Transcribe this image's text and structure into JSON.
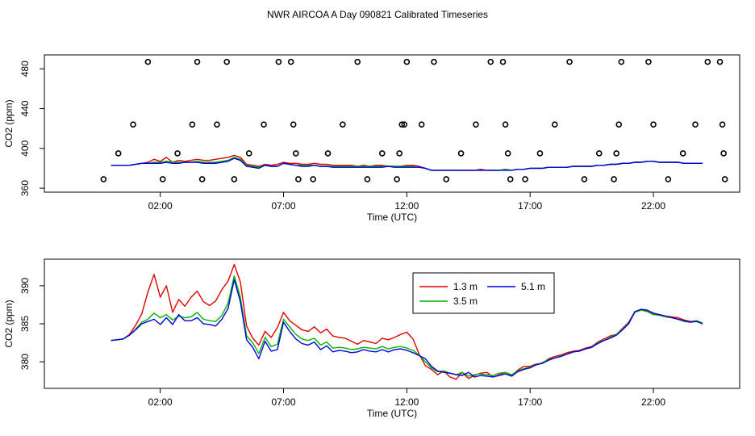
{
  "figure_title": "NWR AIRCOA A  Day 090821  Calibrated Timeseries",
  "colors": {
    "series_1_3m": "#e00000",
    "series_3_5m": "#00b400",
    "series_5_1m": "#0000e0",
    "axis": "#000000"
  },
  "chart_data": [
    {
      "type": "line",
      "title": "",
      "xlabel": "Time (UTC)",
      "ylabel": "CO2 (ppm)",
      "x_unit": "hours UTC",
      "xlim": [
        -2.7,
        25.5
      ],
      "ylim": [
        356,
        494
      ],
      "xticks": [
        2,
        7,
        12,
        17,
        22
      ],
      "xtick_labels": [
        "02:00",
        "07:00",
        "12:00",
        "17:00",
        "22:00"
      ],
      "yticks": [
        360,
        400,
        440,
        480
      ],
      "ytick_labels": [
        "360",
        "400",
        "440",
        "480"
      ],
      "line_x": [
        0,
        0.25,
        0.5,
        0.75,
        1,
        1.25,
        1.5,
        1.75,
        2,
        2.25,
        2.5,
        2.75,
        3,
        3.25,
        3.5,
        3.75,
        4,
        4.25,
        4.5,
        4.75,
        5,
        5.25,
        5.5,
        5.75,
        6,
        6.25,
        6.5,
        6.75,
        7,
        7.25,
        7.5,
        7.75,
        8,
        8.25,
        8.5,
        8.75,
        9,
        9.25,
        9.5,
        9.75,
        10,
        10.25,
        10.5,
        10.75,
        11,
        11.25,
        11.5,
        11.75,
        12,
        12.25,
        12.5,
        12.75,
        13,
        13.25,
        13.5,
        13.75,
        14,
        14.25,
        14.5,
        14.75,
        15,
        15.25,
        15.5,
        15.75,
        16,
        16.25,
        16.5,
        16.75,
        17,
        17.25,
        17.5,
        17.75,
        18,
        18.25,
        18.5,
        18.75,
        19,
        19.25,
        19.5,
        19.75,
        20,
        20.25,
        20.5,
        20.75,
        21,
        21.25,
        21.5,
        21.75,
        22,
        22.25,
        22.5,
        22.75,
        23,
        23.25,
        23.5,
        23.75,
        24
      ],
      "series": [
        {
          "name": "1.3 m",
          "values": [
            383,
            383,
            383,
            383,
            384,
            385,
            386,
            389,
            387,
            391,
            386,
            388,
            387,
            388,
            389,
            388,
            388,
            389,
            390,
            391,
            393,
            391,
            384,
            383,
            382,
            384,
            383,
            384,
            386,
            385,
            385,
            384,
            384,
            385,
            384,
            384,
            383,
            383,
            383,
            383,
            382,
            383,
            382,
            383,
            383,
            382,
            382,
            382,
            383,
            383,
            382,
            380,
            378,
            378,
            378,
            378,
            378,
            378,
            378,
            378,
            379,
            378,
            378,
            378,
            379,
            378,
            379,
            379,
            380,
            380,
            380,
            381,
            381,
            381,
            381,
            382,
            382,
            382,
            382,
            383,
            383,
            384,
            384,
            385,
            385,
            386,
            386,
            387,
            387,
            386,
            386,
            386,
            386,
            385,
            385,
            385,
            385,
            384,
            384
          ]
        },
        {
          "name": "3.5 m",
          "values": [
            383,
            383,
            383,
            383,
            384,
            385,
            385,
            386,
            386,
            387,
            386,
            386,
            386,
            386,
            387,
            386,
            386,
            386,
            387,
            388,
            391,
            389,
            383,
            382,
            381,
            383,
            382,
            382,
            385,
            384,
            383,
            383,
            383,
            383,
            382,
            382,
            382,
            382,
            382,
            382,
            382,
            382,
            382,
            382,
            382,
            382,
            382,
            382,
            382,
            382,
            381,
            380,
            378,
            378,
            378,
            378,
            378,
            378,
            378,
            378,
            378,
            378,
            378,
            378,
            379,
            378,
            379,
            379,
            380,
            380,
            380,
            381,
            381,
            381,
            381,
            382,
            382,
            382,
            382,
            383,
            383,
            384,
            384,
            385,
            385,
            386,
            386,
            387,
            387,
            386,
            386,
            386,
            386,
            385,
            385,
            385,
            385,
            385,
            385
          ]
        },
        {
          "name": "5.1 m",
          "values": [
            383,
            383,
            383,
            383,
            384,
            385,
            385,
            385,
            385,
            386,
            385,
            385,
            386,
            386,
            386,
            385,
            385,
            385,
            386,
            387,
            390,
            388,
            382,
            381,
            380,
            383,
            382,
            382,
            385,
            384,
            383,
            382,
            382,
            383,
            382,
            382,
            381,
            381,
            381,
            381,
            381,
            381,
            381,
            381,
            381,
            382,
            381,
            381,
            381,
            381,
            381,
            380,
            378,
            378,
            378,
            378,
            378,
            378,
            378,
            378,
            378,
            378,
            378,
            378,
            378,
            378,
            379,
            379,
            380,
            380,
            380,
            381,
            381,
            381,
            381,
            382,
            382,
            382,
            382,
            383,
            383,
            384,
            384,
            385,
            385,
            386,
            386,
            387,
            387,
            386,
            386,
            386,
            386,
            385,
            385,
            385,
            385,
            385,
            385
          ]
        }
      ],
      "calibration_points": [
        {
          "x": -0.3,
          "y": 369
        },
        {
          "x": 0.3,
          "y": 395
        },
        {
          "x": 0.9,
          "y": 424
        },
        {
          "x": 1.5,
          "y": 487
        },
        {
          "x": 2.1,
          "y": 369
        },
        {
          "x": 2.7,
          "y": 395
        },
        {
          "x": 3.3,
          "y": 424
        },
        {
          "x": 3.5,
          "y": 487
        },
        {
          "x": 3.7,
          "y": 369
        },
        {
          "x": 4.3,
          "y": 424
        },
        {
          "x": 4.7,
          "y": 487
        },
        {
          "x": 5.0,
          "y": 369
        },
        {
          "x": 5.6,
          "y": 395
        },
        {
          "x": 6.2,
          "y": 424
        },
        {
          "x": 6.8,
          "y": 487
        },
        {
          "x": 7.3,
          "y": 487
        },
        {
          "x": 7.4,
          "y": 424
        },
        {
          "x": 7.5,
          "y": 395
        },
        {
          "x": 7.6,
          "y": 369
        },
        {
          "x": 8.2,
          "y": 369
        },
        {
          "x": 8.8,
          "y": 395
        },
        {
          "x": 9.4,
          "y": 424
        },
        {
          "x": 10.0,
          "y": 487
        },
        {
          "x": 10.4,
          "y": 369
        },
        {
          "x": 11.0,
          "y": 395
        },
        {
          "x": 11.6,
          "y": 369
        },
        {
          "x": 11.7,
          "y": 395
        },
        {
          "x": 11.8,
          "y": 424
        },
        {
          "x": 11.9,
          "y": 424
        },
        {
          "x": 12.0,
          "y": 487
        },
        {
          "x": 12.6,
          "y": 424
        },
        {
          "x": 13.1,
          "y": 487
        },
        {
          "x": 13.6,
          "y": 369
        },
        {
          "x": 14.2,
          "y": 395
        },
        {
          "x": 14.8,
          "y": 424
        },
        {
          "x": 15.4,
          "y": 487
        },
        {
          "x": 15.9,
          "y": 487
        },
        {
          "x": 16.0,
          "y": 424
        },
        {
          "x": 16.1,
          "y": 395
        },
        {
          "x": 16.2,
          "y": 369
        },
        {
          "x": 16.8,
          "y": 369
        },
        {
          "x": 17.4,
          "y": 395
        },
        {
          "x": 18.0,
          "y": 424
        },
        {
          "x": 18.6,
          "y": 487
        },
        {
          "x": 19.2,
          "y": 369
        },
        {
          "x": 19.8,
          "y": 395
        },
        {
          "x": 20.4,
          "y": 369
        },
        {
          "x": 20.5,
          "y": 395
        },
        {
          "x": 20.6,
          "y": 424
        },
        {
          "x": 20.7,
          "y": 487
        },
        {
          "x": 21.8,
          "y": 487
        },
        {
          "x": 22.0,
          "y": 424
        },
        {
          "x": 22.6,
          "y": 369
        },
        {
          "x": 23.2,
          "y": 395
        },
        {
          "x": 23.7,
          "y": 424
        },
        {
          "x": 24.2,
          "y": 487
        },
        {
          "x": 24.7,
          "y": 487
        },
        {
          "x": 24.8,
          "y": 424
        },
        {
          "x": 24.85,
          "y": 395
        },
        {
          "x": 24.9,
          "y": 369
        }
      ]
    },
    {
      "type": "line",
      "title": "",
      "xlabel": "Time (UTC)",
      "ylabel": "CO2 (ppm)",
      "x_unit": "hours UTC",
      "xlim": [
        -2.7,
        25.5
      ],
      "ylim": [
        376.5,
        393.5
      ],
      "xticks": [
        2,
        7,
        12,
        17,
        22
      ],
      "xtick_labels": [
        "02:00",
        "07:00",
        "12:00",
        "17:00",
        "22:00"
      ],
      "yticks": [
        380,
        385,
        390
      ],
      "ytick_labels": [
        "380",
        "385",
        "390"
      ],
      "legend_position": "top-center",
      "legend": [
        "1.3 m",
        "3.5 m",
        "5.1 m"
      ],
      "line_x": [
        0,
        0.25,
        0.5,
        0.75,
        1,
        1.25,
        1.5,
        1.75,
        2,
        2.25,
        2.5,
        2.75,
        3,
        3.25,
        3.5,
        3.75,
        4,
        4.25,
        4.5,
        4.75,
        5,
        5.25,
        5.5,
        5.75,
        6,
        6.25,
        6.5,
        6.75,
        7,
        7.25,
        7.5,
        7.75,
        8,
        8.25,
        8.5,
        8.75,
        9,
        9.25,
        9.5,
        9.75,
        10,
        10.25,
        10.5,
        10.75,
        11,
        11.25,
        11.5,
        11.75,
        12,
        12.25,
        12.5,
        12.75,
        13,
        13.25,
        13.5,
        13.75,
        14,
        14.25,
        14.5,
        14.75,
        15,
        15.25,
        15.5,
        15.75,
        16,
        16.25,
        16.5,
        16.75,
        17,
        17.25,
        17.5,
        17.75,
        18,
        18.25,
        18.5,
        18.75,
        19,
        19.25,
        19.5,
        19.75,
        20,
        20.25,
        20.5,
        20.75,
        21,
        21.25,
        21.5,
        21.75,
        22,
        22.25,
        22.5,
        22.75,
        23,
        23.25,
        23.5,
        23.75,
        24
      ],
      "series": [
        {
          "name": "1.3 m",
          "values": [
            382.8,
            382.9,
            383.0,
            383.6,
            384.8,
            386.3,
            389.2,
            391.5,
            388.5,
            390.0,
            386.5,
            388.2,
            387.3,
            388.5,
            389.3,
            387.9,
            387.4,
            388.0,
            389.5,
            390.6,
            392.8,
            390.5,
            384.7,
            383.1,
            382.2,
            384.0,
            383.2,
            384.5,
            386.5,
            385.4,
            384.8,
            384.2,
            384.0,
            384.6,
            383.8,
            384.3,
            383.4,
            383.2,
            383.1,
            382.7,
            382.3,
            382.8,
            382.6,
            382.4,
            383.1,
            382.9,
            383.2,
            383.6,
            383.9,
            383.0,
            381.0,
            379.5,
            379.0,
            378.3,
            378.8,
            378.0,
            377.7,
            378.6,
            377.8,
            378.2,
            378.5,
            378.6,
            378.0,
            378.3,
            378.6,
            378.2,
            378.9,
            379.4,
            379.4,
            379.7,
            379.8,
            380.4,
            380.7,
            380.9,
            381.2,
            381.4,
            381.5,
            381.8,
            382.0,
            382.6,
            383.0,
            383.4,
            383.6,
            384.4,
            385.2,
            386.6,
            386.8,
            386.7,
            386.3,
            386.2,
            386.0,
            385.9,
            385.8,
            385.5,
            385.3,
            385.4,
            385.0,
            384.8,
            384.8
          ]
        },
        {
          "name": "3.5 m",
          "values": [
            382.8,
            382.9,
            383.0,
            383.5,
            384.3,
            385.2,
            385.6,
            386.4,
            385.8,
            386.2,
            385.5,
            386.0,
            385.8,
            385.9,
            386.5,
            385.6,
            385.4,
            385.3,
            386.1,
            387.7,
            391.3,
            388.5,
            383.4,
            382.5,
            381.1,
            383.2,
            382.0,
            382.3,
            385.6,
            384.6,
            383.6,
            383.0,
            382.8,
            383.1,
            382.2,
            382.6,
            381.8,
            381.9,
            381.8,
            381.6,
            381.7,
            381.9,
            381.8,
            381.7,
            382.0,
            381.7,
            381.9,
            382.0,
            381.8,
            381.5,
            380.9,
            380.0,
            379.2,
            378.7,
            378.8,
            378.5,
            378.3,
            378.6,
            378.1,
            378.3,
            378.4,
            378.3,
            378.2,
            378.5,
            378.6,
            378.3,
            378.8,
            379.1,
            379.3,
            379.6,
            379.9,
            380.3,
            380.5,
            380.8,
            381.0,
            381.3,
            381.4,
            381.7,
            381.9,
            382.5,
            382.8,
            383.2,
            383.6,
            384.3,
            385.1,
            386.5,
            386.8,
            386.6,
            386.2,
            386.1,
            385.9,
            385.8,
            385.6,
            385.3,
            385.2,
            385.4,
            385.1,
            385.1,
            385.1
          ]
        },
        {
          "name": "5.1 m",
          "values": [
            382.8,
            382.9,
            383.0,
            383.5,
            384.2,
            385.0,
            385.3,
            385.6,
            384.9,
            385.8,
            384.9,
            386.2,
            385.4,
            385.4,
            385.8,
            385.0,
            384.9,
            384.7,
            385.6,
            387.0,
            390.8,
            387.9,
            382.9,
            381.9,
            380.4,
            382.7,
            381.4,
            381.6,
            385.2,
            384.0,
            383.0,
            382.4,
            382.2,
            382.6,
            381.6,
            382.1,
            381.3,
            381.5,
            381.4,
            381.2,
            381.3,
            381.6,
            381.4,
            381.3,
            381.6,
            381.3,
            381.6,
            381.7,
            381.5,
            381.2,
            380.8,
            380.4,
            379.4,
            378.8,
            378.6,
            378.5,
            378.3,
            378.2,
            378.6,
            378.0,
            378.2,
            378.1,
            378.0,
            378.2,
            378.4,
            378.1,
            378.7,
            379.0,
            379.2,
            379.6,
            379.8,
            380.2,
            380.5,
            380.7,
            381.0,
            381.3,
            381.4,
            381.7,
            381.9,
            382.4,
            382.8,
            383.1,
            383.5,
            384.2,
            385.0,
            386.6,
            386.9,
            386.8,
            386.4,
            386.2,
            386.0,
            385.8,
            385.6,
            385.4,
            385.2,
            385.3,
            385.0,
            385.0,
            385.0
          ]
        }
      ]
    }
  ]
}
